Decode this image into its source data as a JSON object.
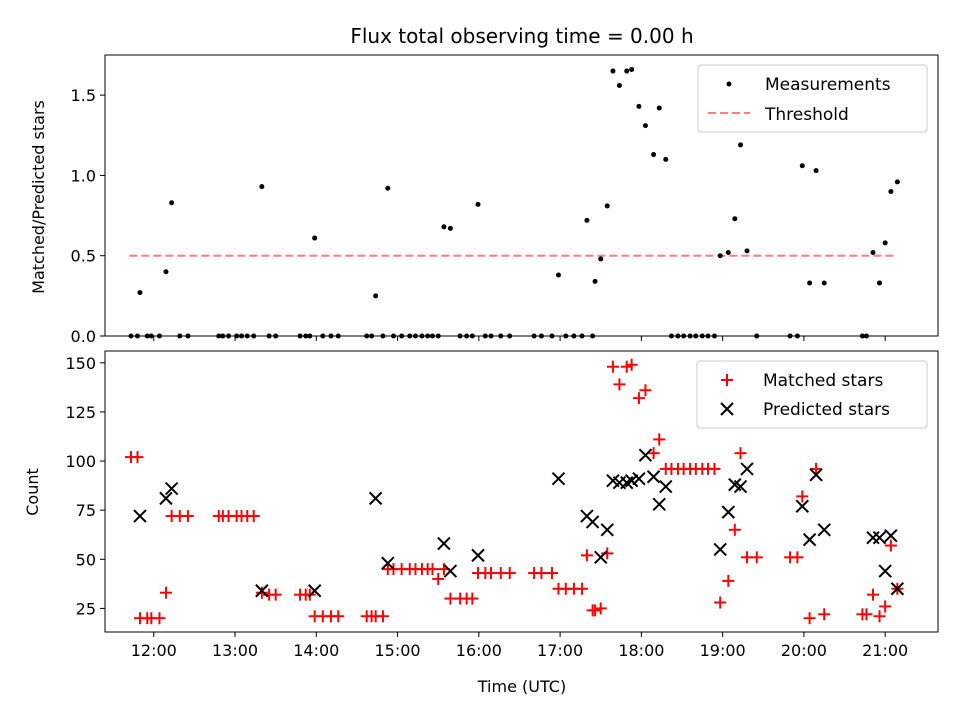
{
  "chart_data": {
    "title": "Flux total observing time = 0.00 h",
    "xlabel": "Time (UTC)",
    "x_ticks": [
      "12:00",
      "13:00",
      "14:00",
      "15:00",
      "16:00",
      "17:00",
      "18:00",
      "19:00",
      "20:00",
      "21:00"
    ],
    "x_range_hours": [
      11.4,
      21.65
    ],
    "colors": {
      "matched": "#ff0000",
      "threshold": "#ff7f7f",
      "black": "#000000"
    },
    "top": {
      "type": "scatter",
      "ylabel": "Matched/Predicted stars",
      "ylim": [
        0,
        1.75
      ],
      "yticks": [
        "0.0",
        "0.5",
        "1.0",
        "1.5"
      ],
      "legend": [
        "Measurements",
        "Threshold"
      ],
      "threshold": 0.5,
      "threshold_x": [
        11.7,
        21.15
      ],
      "measurements": [
        [
          11.72,
          0
        ],
        [
          11.8,
          0
        ],
        [
          11.83,
          0.27
        ],
        [
          11.92,
          0
        ],
        [
          11.97,
          0
        ],
        [
          12.07,
          0
        ],
        [
          12.15,
          0.4
        ],
        [
          12.22,
          0.83
        ],
        [
          12.32,
          0
        ],
        [
          12.42,
          0
        ],
        [
          12.8,
          0
        ],
        [
          12.85,
          0
        ],
        [
          12.92,
          0
        ],
        [
          13.02,
          0
        ],
        [
          13.08,
          0
        ],
        [
          13.15,
          0
        ],
        [
          13.23,
          0
        ],
        [
          13.33,
          0.93
        ],
        [
          13.42,
          0
        ],
        [
          13.5,
          0
        ],
        [
          13.8,
          0
        ],
        [
          13.87,
          0
        ],
        [
          13.92,
          0
        ],
        [
          13.98,
          0.61
        ],
        [
          14.08,
          0
        ],
        [
          14.18,
          0
        ],
        [
          14.27,
          0
        ],
        [
          14.62,
          0
        ],
        [
          14.68,
          0
        ],
        [
          14.73,
          0.25
        ],
        [
          14.82,
          0
        ],
        [
          14.88,
          0.92
        ],
        [
          14.95,
          0
        ],
        [
          15.05,
          0
        ],
        [
          15.15,
          0
        ],
        [
          15.22,
          0
        ],
        [
          15.3,
          0
        ],
        [
          15.37,
          0
        ],
        [
          15.43,
          0
        ],
        [
          15.5,
          0
        ],
        [
          15.57,
          0.68
        ],
        [
          15.65,
          0.67
        ],
        [
          15.77,
          0
        ],
        [
          15.85,
          0
        ],
        [
          15.92,
          0
        ],
        [
          15.99,
          0.82
        ],
        [
          16.08,
          0
        ],
        [
          16.15,
          0
        ],
        [
          16.27,
          0
        ],
        [
          16.38,
          0
        ],
        [
          16.68,
          0
        ],
        [
          16.77,
          0
        ],
        [
          16.9,
          0
        ],
        [
          16.98,
          0.38
        ],
        [
          17.07,
          0
        ],
        [
          17.17,
          0
        ],
        [
          17.27,
          0
        ],
        [
          17.33,
          0.72
        ],
        [
          17.4,
          0
        ],
        [
          17.43,
          0.34
        ],
        [
          17.5,
          0.48
        ],
        [
          17.58,
          0.81
        ],
        [
          17.65,
          1.65
        ],
        [
          17.73,
          1.56
        ],
        [
          17.82,
          1.65
        ],
        [
          17.88,
          1.66
        ],
        [
          17.97,
          1.43
        ],
        [
          18.05,
          1.31
        ],
        [
          18.15,
          1.13
        ],
        [
          18.22,
          1.42
        ],
        [
          18.3,
          1.1
        ],
        [
          18.37,
          0
        ],
        [
          18.45,
          0
        ],
        [
          18.52,
          0
        ],
        [
          18.6,
          0
        ],
        [
          18.67,
          0
        ],
        [
          18.75,
          0
        ],
        [
          18.82,
          0
        ],
        [
          18.9,
          0
        ],
        [
          18.97,
          0.5
        ],
        [
          19.07,
          0.52
        ],
        [
          19.15,
          0.73
        ],
        [
          19.22,
          1.19
        ],
        [
          19.3,
          0.53
        ],
        [
          19.42,
          0
        ],
        [
          19.83,
          0
        ],
        [
          19.92,
          0
        ],
        [
          19.98,
          1.06
        ],
        [
          20.07,
          0.33
        ],
        [
          20.15,
          1.03
        ],
        [
          20.25,
          0.33
        ],
        [
          20.72,
          0
        ],
        [
          20.77,
          0
        ],
        [
          20.85,
          0.52
        ],
        [
          20.93,
          0.33
        ],
        [
          21.0,
          0.58
        ],
        [
          21.07,
          0.9
        ],
        [
          21.15,
          0.96
        ]
      ]
    },
    "bottom": {
      "type": "scatter",
      "ylabel": "Count",
      "ylim": [
        13,
        156
      ],
      "yticks": [
        "25",
        "50",
        "75",
        "100",
        "125",
        "150"
      ],
      "ytick_values": [
        25,
        50,
        75,
        100,
        125,
        150
      ],
      "legend": [
        "Matched stars",
        "Predicted stars"
      ],
      "matched": [
        [
          11.72,
          102
        ],
        [
          11.8,
          102
        ],
        [
          11.83,
          20
        ],
        [
          11.92,
          20
        ],
        [
          11.97,
          20
        ],
        [
          12.07,
          20
        ],
        [
          12.15,
          33
        ],
        [
          12.22,
          72
        ],
        [
          12.32,
          72
        ],
        [
          12.42,
          72
        ],
        [
          12.8,
          72
        ],
        [
          12.85,
          72
        ],
        [
          12.92,
          72
        ],
        [
          13.02,
          72
        ],
        [
          13.08,
          72
        ],
        [
          13.15,
          72
        ],
        [
          13.23,
          72
        ],
        [
          13.33,
          33
        ],
        [
          13.42,
          32
        ],
        [
          13.5,
          32
        ],
        [
          13.8,
          32
        ],
        [
          13.87,
          32
        ],
        [
          13.92,
          32
        ],
        [
          13.98,
          21
        ],
        [
          14.08,
          21
        ],
        [
          14.18,
          21
        ],
        [
          14.27,
          21
        ],
        [
          14.62,
          21
        ],
        [
          14.68,
          21
        ],
        [
          14.73,
          21
        ],
        [
          14.82,
          21
        ],
        [
          14.88,
          45
        ],
        [
          14.95,
          45
        ],
        [
          15.05,
          45
        ],
        [
          15.15,
          45
        ],
        [
          15.22,
          45
        ],
        [
          15.3,
          45
        ],
        [
          15.37,
          45
        ],
        [
          15.43,
          45
        ],
        [
          15.5,
          40
        ],
        [
          15.57,
          45
        ],
        [
          15.65,
          30
        ],
        [
          15.77,
          30
        ],
        [
          15.85,
          30
        ],
        [
          15.92,
          30
        ],
        [
          15.99,
          43
        ],
        [
          16.08,
          43
        ],
        [
          16.15,
          43
        ],
        [
          16.27,
          43
        ],
        [
          16.38,
          43
        ],
        [
          16.68,
          43
        ],
        [
          16.77,
          43
        ],
        [
          16.9,
          43
        ],
        [
          16.98,
          35
        ],
        [
          17.07,
          35
        ],
        [
          17.17,
          35
        ],
        [
          17.27,
          35
        ],
        [
          17.33,
          52
        ],
        [
          17.4,
          24
        ],
        [
          17.43,
          24
        ],
        [
          17.5,
          25
        ],
        [
          17.58,
          53
        ],
        [
          17.65,
          148
        ],
        [
          17.73,
          139
        ],
        [
          17.82,
          148
        ],
        [
          17.88,
          149
        ],
        [
          17.97,
          132
        ],
        [
          18.05,
          136
        ],
        [
          18.15,
          104
        ],
        [
          18.22,
          111
        ],
        [
          18.3,
          96
        ],
        [
          18.37,
          96
        ],
        [
          18.45,
          96
        ],
        [
          18.52,
          96
        ],
        [
          18.6,
          96
        ],
        [
          18.67,
          96
        ],
        [
          18.75,
          96
        ],
        [
          18.82,
          96
        ],
        [
          18.9,
          96
        ],
        [
          18.97,
          28
        ],
        [
          19.07,
          39
        ],
        [
          19.15,
          65
        ],
        [
          19.22,
          104
        ],
        [
          19.3,
          51
        ],
        [
          19.42,
          51
        ],
        [
          19.83,
          51
        ],
        [
          19.92,
          51
        ],
        [
          19.98,
          82
        ],
        [
          20.07,
          20
        ],
        [
          20.15,
          96
        ],
        [
          20.25,
          22
        ],
        [
          20.72,
          22
        ],
        [
          20.77,
          22
        ],
        [
          20.85,
          32
        ],
        [
          20.93,
          21
        ],
        [
          21.0,
          26
        ],
        [
          21.07,
          57
        ],
        [
          21.15,
          35
        ]
      ],
      "predicted": [
        [
          11.83,
          72
        ],
        [
          12.15,
          81
        ],
        [
          12.22,
          86
        ],
        [
          13.33,
          34
        ],
        [
          13.98,
          34
        ],
        [
          14.73,
          81
        ],
        [
          14.88,
          48
        ],
        [
          15.57,
          58
        ],
        [
          15.65,
          44
        ],
        [
          15.99,
          52
        ],
        [
          16.98,
          91
        ],
        [
          17.33,
          72
        ],
        [
          17.4,
          69
        ],
        [
          17.5,
          51
        ],
        [
          17.58,
          65
        ],
        [
          17.65,
          90
        ],
        [
          17.73,
          89
        ],
        [
          17.82,
          89
        ],
        [
          17.88,
          90
        ],
        [
          17.97,
          91
        ],
        [
          18.05,
          103
        ],
        [
          18.15,
          92
        ],
        [
          18.22,
          78
        ],
        [
          18.3,
          87
        ],
        [
          18.97,
          55
        ],
        [
          19.07,
          74
        ],
        [
          19.15,
          88
        ],
        [
          19.22,
          87
        ],
        [
          19.3,
          96
        ],
        [
          19.98,
          77
        ],
        [
          20.07,
          60
        ],
        [
          20.15,
          93
        ],
        [
          20.25,
          65
        ],
        [
          20.85,
          61
        ],
        [
          20.93,
          61
        ],
        [
          21.0,
          44
        ],
        [
          21.07,
          62
        ],
        [
          21.15,
          35
        ]
      ]
    }
  }
}
